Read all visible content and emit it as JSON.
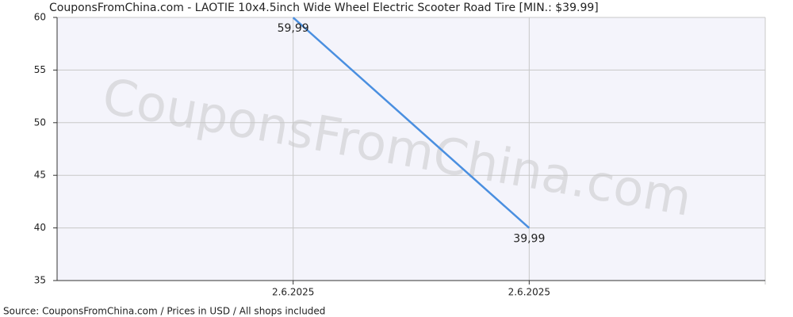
{
  "chart_data": {
    "type": "line",
    "title": "CouponsFromChina.com - LAOTIE 10x4.5inch Wide Wheel Electric Scooter Road Tire [MIN.: $39.99]",
    "watermark": "CouponsFromChina.com",
    "source": "Source: CouponsFromChina.com / Prices in USD / All shops included",
    "categories": [
      "2.6.2025",
      "2.6.2025"
    ],
    "series": [
      {
        "name": "Price",
        "color": "#4a8fe0",
        "values": [
          59.99,
          39.99
        ],
        "value_labels": [
          "59,99",
          "39,99"
        ]
      }
    ],
    "ylim": [
      35,
      60
    ],
    "yticks": [
      35,
      40,
      45,
      50,
      55,
      60
    ],
    "grid": true
  }
}
